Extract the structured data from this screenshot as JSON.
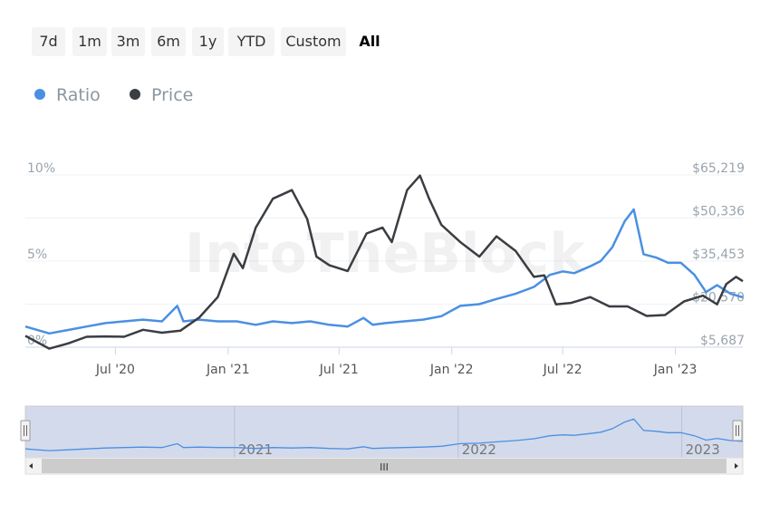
{
  "range_buttons": [
    {
      "label": "7d"
    },
    {
      "label": "1m"
    },
    {
      "label": "3m"
    },
    {
      "label": "6m"
    },
    {
      "label": "1y"
    },
    {
      "label": "YTD"
    },
    {
      "label": "Custom"
    },
    {
      "label": "All",
      "selected": true
    }
  ],
  "legend": [
    {
      "label": "Ratio",
      "color": "#4a90e2"
    },
    {
      "label": "Price",
      "color": "#3a3d42"
    }
  ],
  "watermark": "IntoTheBlock",
  "chart_data": {
    "type": "line",
    "x_ticks": [
      "Jul '20",
      "Jan '21",
      "Jul '21",
      "Jan '22",
      "Jul '22",
      "Jan '23"
    ],
    "x_tick_dates": [
      "2020-07-01",
      "2021-01-01",
      "2021-07-01",
      "2022-01-01",
      "2022-07-01",
      "2023-01-01"
    ],
    "x_range": [
      "2020-02-05",
      "2023-04-21"
    ],
    "y_left": {
      "ticks": [
        "10%",
        "5%",
        "0%"
      ],
      "range": [
        0,
        10
      ]
    },
    "y_right": {
      "ticks": [
        "$65,219",
        "$50,336",
        "$35,453",
        "$20,570",
        "$5,687"
      ],
      "range": [
        5687,
        65219
      ]
    },
    "grid": true,
    "legend_position": "top-left",
    "series": [
      {
        "name": "Ratio",
        "axis": "left",
        "color": "#4a90e2",
        "x": [
          "2020-02-05",
          "2020-03-15",
          "2020-04-15",
          "2020-05-15",
          "2020-06-15",
          "2020-07-15",
          "2020-08-15",
          "2020-09-15",
          "2020-10-10",
          "2020-10-20",
          "2020-11-15",
          "2020-12-15",
          "2021-01-15",
          "2021-02-15",
          "2021-03-15",
          "2021-04-15",
          "2021-05-15",
          "2021-06-15",
          "2021-07-15",
          "2021-08-10",
          "2021-08-25",
          "2021-09-15",
          "2021-10-15",
          "2021-11-15",
          "2021-12-15",
          "2022-01-15",
          "2022-02-15",
          "2022-03-15",
          "2022-04-15",
          "2022-05-15",
          "2022-06-10",
          "2022-07-01",
          "2022-07-20",
          "2022-08-15",
          "2022-09-01",
          "2022-09-20",
          "2022-10-10",
          "2022-10-25",
          "2022-11-10",
          "2022-12-01",
          "2022-12-20",
          "2023-01-10",
          "2023-02-01",
          "2023-02-20",
          "2023-03-10",
          "2023-04-01",
          "2023-04-21"
        ],
        "y": [
          1.2,
          0.8,
          1.0,
          1.2,
          1.4,
          1.5,
          1.6,
          1.5,
          2.4,
          1.5,
          1.6,
          1.5,
          1.5,
          1.3,
          1.5,
          1.4,
          1.5,
          1.3,
          1.2,
          1.7,
          1.3,
          1.4,
          1.5,
          1.6,
          1.8,
          2.4,
          2.5,
          2.8,
          3.1,
          3.5,
          4.2,
          4.4,
          4.3,
          4.7,
          5.0,
          5.8,
          7.3,
          8.0,
          5.4,
          5.2,
          4.9,
          4.9,
          4.2,
          3.2,
          3.6,
          3.1,
          2.9
        ]
      },
      {
        "name": "Price",
        "axis": "right",
        "color": "#3a3d42",
        "x": [
          "2020-02-05",
          "2020-03-15",
          "2020-04-15",
          "2020-05-15",
          "2020-06-15",
          "2020-07-15",
          "2020-08-15",
          "2020-09-15",
          "2020-10-15",
          "2020-11-15",
          "2020-12-15",
          "2021-01-10",
          "2021-01-25",
          "2021-02-15",
          "2021-03-15",
          "2021-04-15",
          "2021-05-10",
          "2021-05-25",
          "2021-06-15",
          "2021-07-15",
          "2021-08-15",
          "2021-09-10",
          "2021-09-25",
          "2021-10-20",
          "2021-11-10",
          "2021-11-25",
          "2021-12-15",
          "2022-01-15",
          "2022-02-15",
          "2022-03-15",
          "2022-04-15",
          "2022-05-15",
          "2022-06-01",
          "2022-06-20",
          "2022-07-15",
          "2022-08-15",
          "2022-09-15",
          "2022-10-15",
          "2022-11-15",
          "2022-12-15",
          "2023-01-15",
          "2023-02-15",
          "2023-03-10",
          "2023-03-25",
          "2023-04-10",
          "2023-04-21"
        ],
        "y": [
          9600,
          5200,
          7000,
          9300,
          9400,
          9300,
          11700,
          10700,
          11400,
          16000,
          23000,
          38000,
          33000,
          47000,
          57000,
          60000,
          50000,
          37000,
          34000,
          32000,
          45000,
          47000,
          42000,
          60000,
          65000,
          57000,
          48000,
          42000,
          37000,
          44000,
          39000,
          30000,
          30500,
          20500,
          21000,
          23000,
          19800,
          19800,
          16500,
          16800,
          21500,
          23500,
          20500,
          27500,
          30000,
          28500
        ]
      }
    ]
  },
  "navigator": {
    "labels": [
      "2021",
      "2022",
      "2023"
    ],
    "scrollbar_grip": "III"
  }
}
